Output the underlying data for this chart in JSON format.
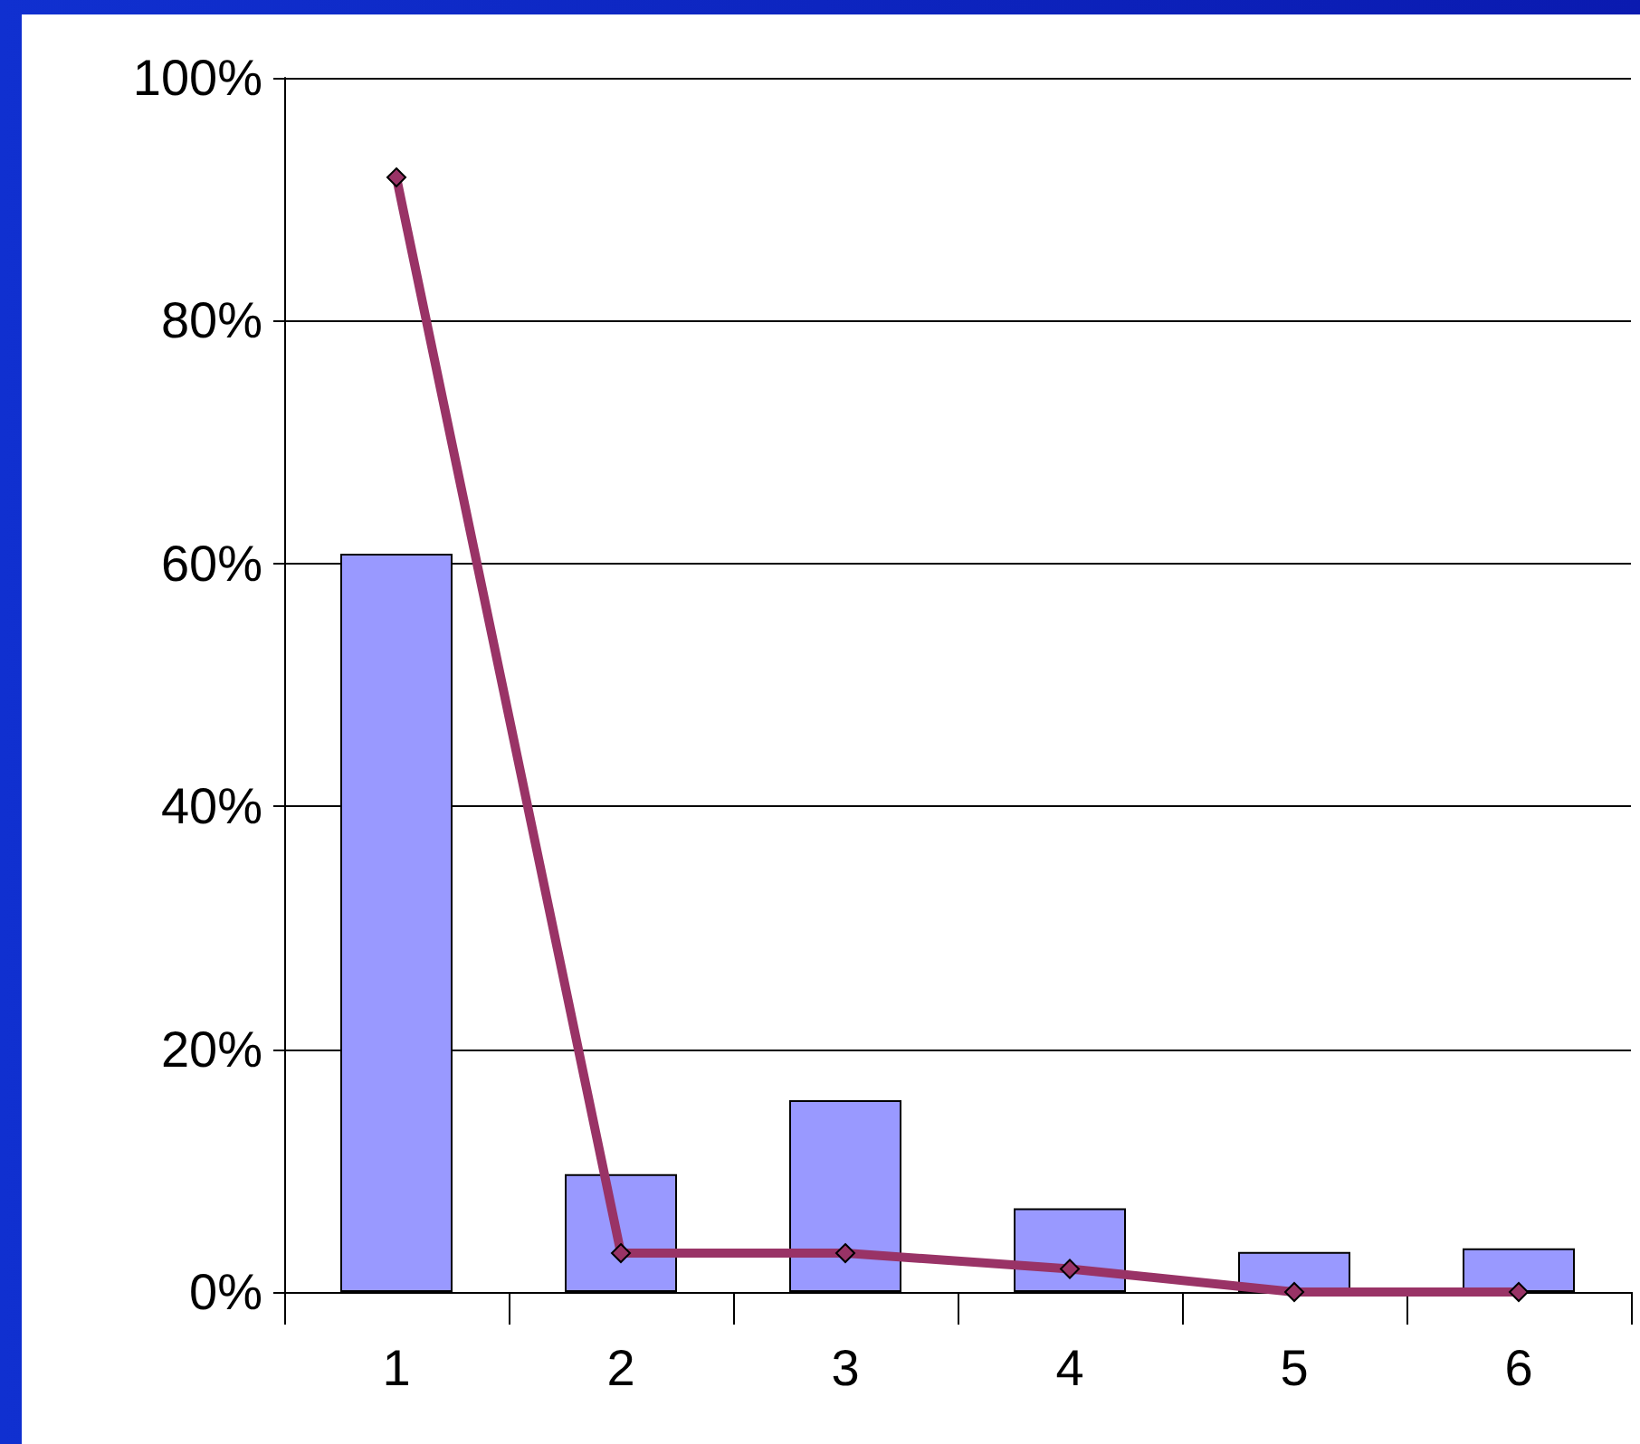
{
  "chart_data": {
    "type": "bar",
    "categories": [
      "1",
      "2",
      "3",
      "4",
      "5",
      "6"
    ],
    "series": [
      {
        "color": "#9999ff",
        "values": [
          60.8,
          9.7,
          15.8,
          6.9,
          3.3,
          3.6
        ]
      },
      {
        "type": "line",
        "color": "#993366",
        "values": [
          91.8,
          3.2,
          3.2,
          1.9,
          0,
          0
        ],
        "marker": "diamond"
      }
    ],
    "ylim": [
      0,
      100
    ],
    "yticks": [
      {
        "value": 0,
        "label": "0%"
      },
      {
        "value": 20,
        "label": "20%"
      },
      {
        "value": 40,
        "label": "40%"
      },
      {
        "value": 60,
        "label": "60%"
      },
      {
        "value": 80,
        "label": "80%"
      },
      {
        "value": 100,
        "label": "100%"
      }
    ],
    "grid": "y"
  }
}
